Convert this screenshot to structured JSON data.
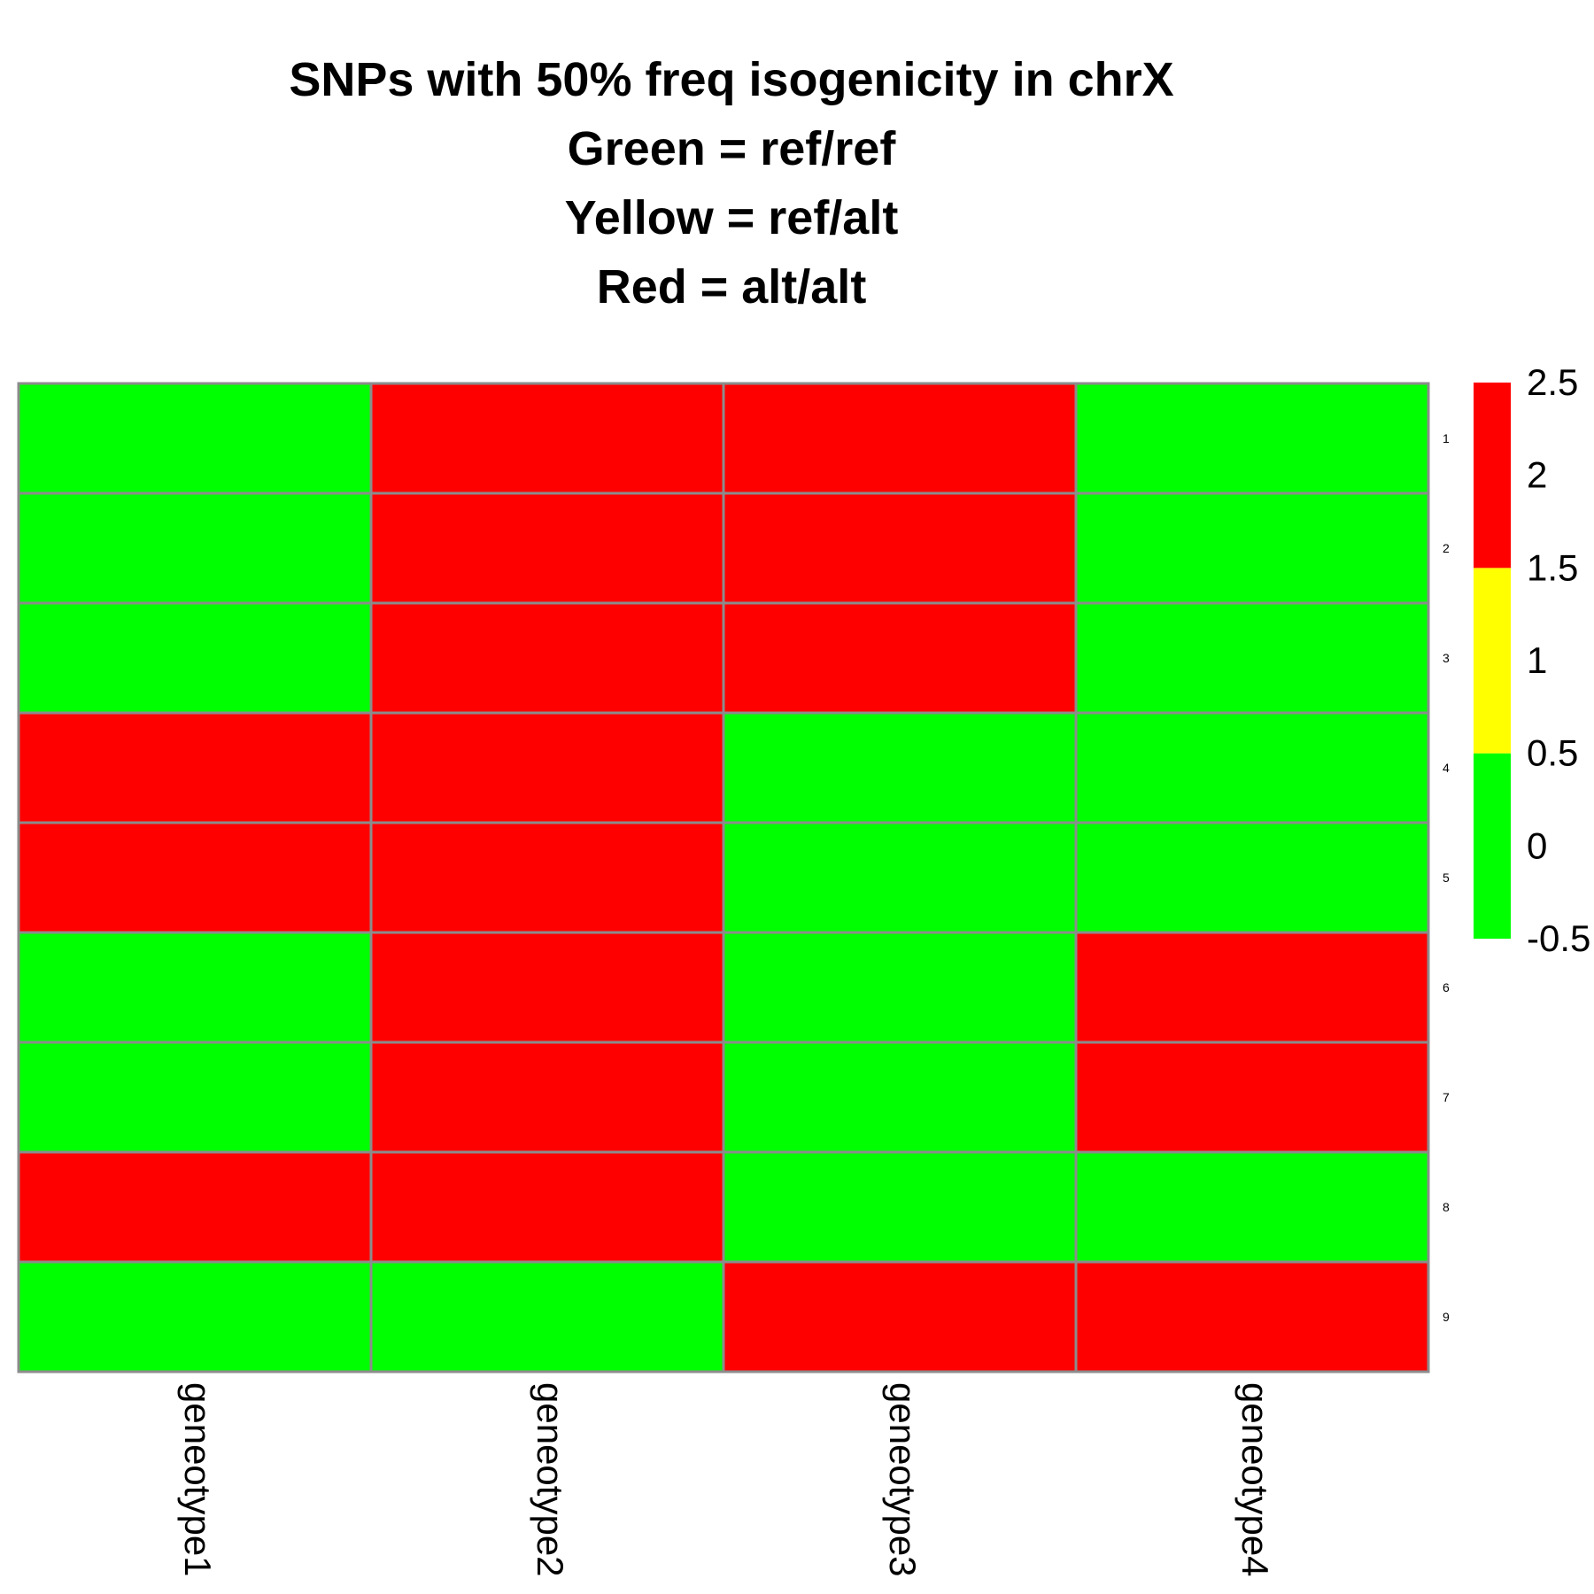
{
  "chart_data": {
    "type": "heatmap",
    "title_lines": [
      "SNPs with 50% freq isogenicity in chrX",
      "Green = ref/ref",
      "Yellow = ref/alt",
      "Red = alt/alt"
    ],
    "columns": [
      "geneotype1",
      "geneotype2",
      "geneotype3",
      "geneotype4"
    ],
    "rows": [
      "1",
      "2",
      "3",
      "4",
      "5",
      "6",
      "7",
      "8",
      "9"
    ],
    "values": [
      [
        0,
        2,
        2,
        0
      ],
      [
        0,
        2,
        2,
        0
      ],
      [
        0,
        2,
        2,
        0
      ],
      [
        2,
        2,
        0,
        0
      ],
      [
        2,
        2,
        0,
        0
      ],
      [
        0,
        2,
        0,
        2
      ],
      [
        0,
        2,
        0,
        2
      ],
      [
        2,
        2,
        0,
        0
      ],
      [
        0,
        0,
        2,
        2
      ]
    ],
    "legend": {
      "range": [
        -0.5,
        2.5
      ],
      "ticks": [
        "2.5",
        "2",
        "1.5",
        "1",
        "0.5",
        "0",
        "-0.5"
      ],
      "bands": [
        {
          "from": -0.5,
          "to": 0.5,
          "color": "#00ff00"
        },
        {
          "from": 0.5,
          "to": 1.5,
          "color": "#ffff00"
        },
        {
          "from": 1.5,
          "to": 2.5,
          "color": "#ff0000"
        }
      ]
    },
    "cell_border_color": "#8c8c8c"
  }
}
